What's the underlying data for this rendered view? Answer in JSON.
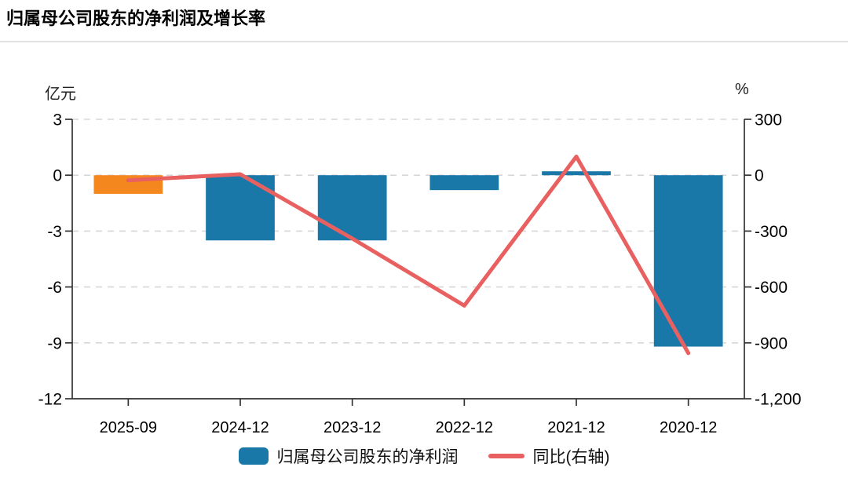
{
  "page": {
    "title": "归属母公司股东的净利润及增长率"
  },
  "chart_data": {
    "type": "bar+line-dual-axis",
    "title": "归属母公司股东的净利润及增长率",
    "categories": [
      "2025-09",
      "2024-12",
      "2023-12",
      "2022-12",
      "2021-12",
      "2020-12"
    ],
    "series": [
      {
        "name": "归属母公司股东的净利润",
        "type": "bar",
        "axis": "left",
        "unit": "亿元",
        "values": [
          -1.0,
          -3.5,
          -3.5,
          -0.8,
          0.15,
          -9.2
        ],
        "bar_colors": [
          "#f5871f",
          "#1a78a8",
          "#1a78a8",
          "#1a78a8",
          "#1a78a8",
          "#1a78a8"
        ]
      },
      {
        "name": "同比(右轴)",
        "type": "line",
        "axis": "right",
        "unit": "%",
        "values": [
          -27,
          5,
          -340,
          -700,
          100,
          -955
        ],
        "color": "#e96060"
      }
    ],
    "left_axis": {
      "unit": "亿元",
      "min": -12,
      "max": 3,
      "tick_values": [
        3,
        0,
        -3,
        -6,
        -9,
        -12
      ],
      "tick_labels": [
        "3",
        "0",
        "-3",
        "-6",
        "-9",
        "-12"
      ]
    },
    "right_axis": {
      "unit": "%",
      "min": -1200,
      "max": 300,
      "tick_values": [
        300,
        0,
        -300,
        -600,
        -900,
        -1200
      ],
      "tick_labels": [
        "300",
        "0",
        "-300",
        "-600",
        "-900",
        "-1,200"
      ]
    },
    "grid": "horizontal-dashed",
    "legend_position": "bottom"
  },
  "legend": {
    "bar_label": "归属母公司股东的净利润",
    "line_label": "同比(右轴)"
  },
  "colors": {
    "bar_teal": "#1a78a8",
    "bar_orange": "#f5871f",
    "line_red": "#e96060",
    "grid": "#d7d7d7",
    "axis": "#333333",
    "divider": "#e2e2e2"
  }
}
